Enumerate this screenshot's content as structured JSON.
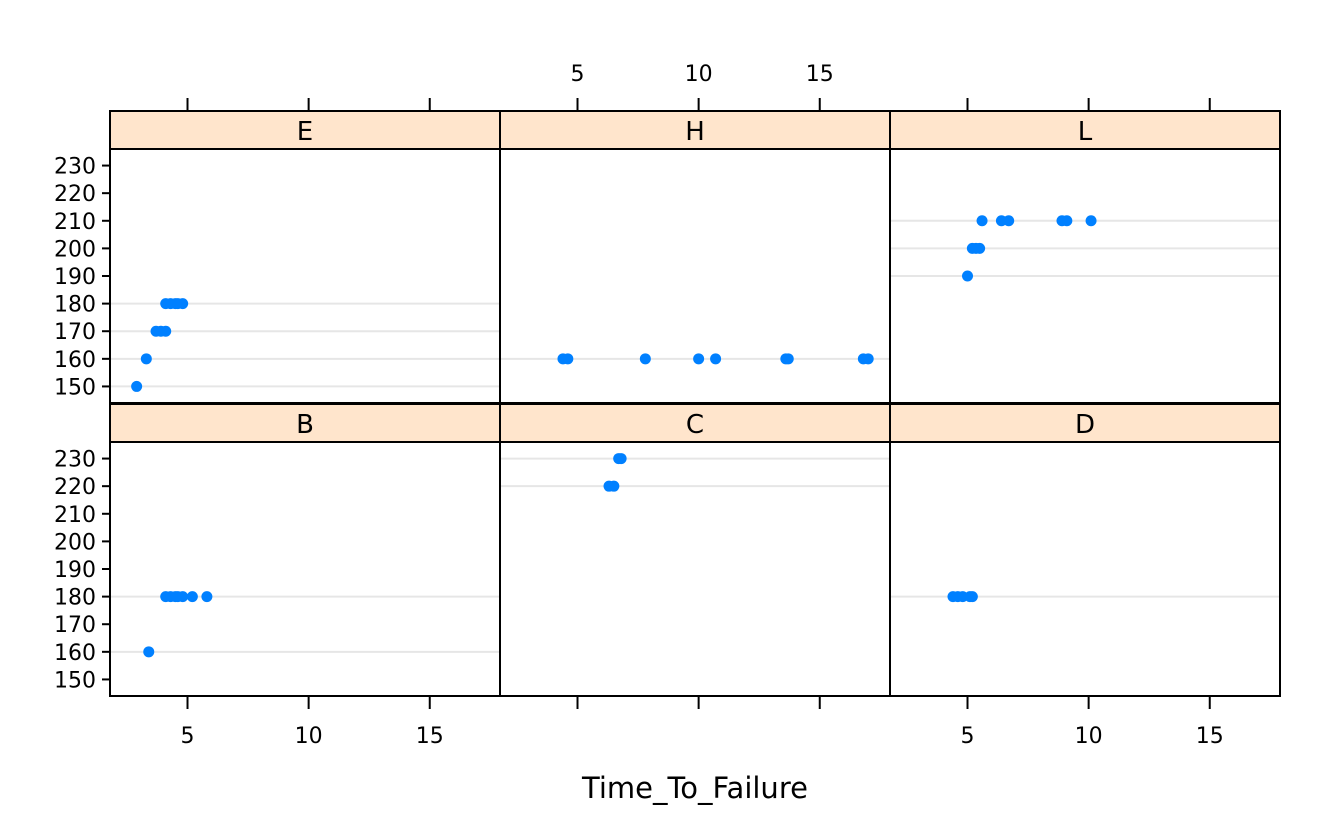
{
  "chart_data": {
    "type": "scatter",
    "xlabel": "Time_To_Failure",
    "ylabel": "",
    "xlim": [
      1.8,
      17.9
    ],
    "ylim": [
      144,
      236
    ],
    "x_ticks": [
      5,
      10,
      15
    ],
    "y_ticks": [
      150,
      160,
      170,
      180,
      190,
      200,
      210,
      220,
      230
    ],
    "grid": "horizontal reference lines at y values present in each panel",
    "layout": {
      "rows": 2,
      "cols": 3
    },
    "colors": {
      "point": "#0080ff",
      "strip": "#ffe5cc",
      "grid": "#e6e6e6",
      "frame": "#000000"
    },
    "panels": [
      {
        "label": "E",
        "row": 0,
        "col": 0,
        "points": [
          {
            "x": 2.9,
            "y": 150
          },
          {
            "x": 3.3,
            "y": 160
          },
          {
            "x": 3.7,
            "y": 170
          },
          {
            "x": 3.9,
            "y": 170
          },
          {
            "x": 4.1,
            "y": 170
          },
          {
            "x": 4.1,
            "y": 180
          },
          {
            "x": 4.3,
            "y": 180
          },
          {
            "x": 4.5,
            "y": 180
          },
          {
            "x": 4.6,
            "y": 180
          },
          {
            "x": 4.8,
            "y": 180
          }
        ]
      },
      {
        "label": "H",
        "row": 0,
        "col": 1,
        "points": [
          {
            "x": 4.4,
            "y": 160
          },
          {
            "x": 4.6,
            "y": 160
          },
          {
            "x": 7.8,
            "y": 160
          },
          {
            "x": 10.0,
            "y": 160
          },
          {
            "x": 10.7,
            "y": 160
          },
          {
            "x": 13.6,
            "y": 160
          },
          {
            "x": 13.7,
            "y": 160
          },
          {
            "x": 16.8,
            "y": 160
          },
          {
            "x": 17.0,
            "y": 160
          }
        ]
      },
      {
        "label": "L",
        "row": 0,
        "col": 2,
        "points": [
          {
            "x": 5.0,
            "y": 190
          },
          {
            "x": 5.2,
            "y": 200
          },
          {
            "x": 5.35,
            "y": 200
          },
          {
            "x": 5.5,
            "y": 200
          },
          {
            "x": 5.6,
            "y": 210
          },
          {
            "x": 6.4,
            "y": 210
          },
          {
            "x": 6.7,
            "y": 210
          },
          {
            "x": 8.9,
            "y": 210
          },
          {
            "x": 9.1,
            "y": 210
          },
          {
            "x": 10.1,
            "y": 210
          }
        ]
      },
      {
        "label": "B",
        "row": 1,
        "col": 0,
        "points": [
          {
            "x": 3.4,
            "y": 160
          },
          {
            "x": 4.1,
            "y": 180
          },
          {
            "x": 4.3,
            "y": 180
          },
          {
            "x": 4.5,
            "y": 180
          },
          {
            "x": 4.6,
            "y": 180
          },
          {
            "x": 4.8,
            "y": 180
          },
          {
            "x": 5.2,
            "y": 180
          },
          {
            "x": 5.8,
            "y": 180
          }
        ]
      },
      {
        "label": "C",
        "row": 1,
        "col": 1,
        "points": [
          {
            "x": 6.3,
            "y": 220
          },
          {
            "x": 6.5,
            "y": 220
          },
          {
            "x": 6.7,
            "y": 230
          },
          {
            "x": 6.8,
            "y": 230
          }
        ]
      },
      {
        "label": "D",
        "row": 1,
        "col": 2,
        "points": [
          {
            "x": 4.4,
            "y": 180
          },
          {
            "x": 4.6,
            "y": 180
          },
          {
            "x": 4.8,
            "y": 180
          },
          {
            "x": 5.1,
            "y": 180
          },
          {
            "x": 5.2,
            "y": 180
          }
        ]
      }
    ]
  }
}
